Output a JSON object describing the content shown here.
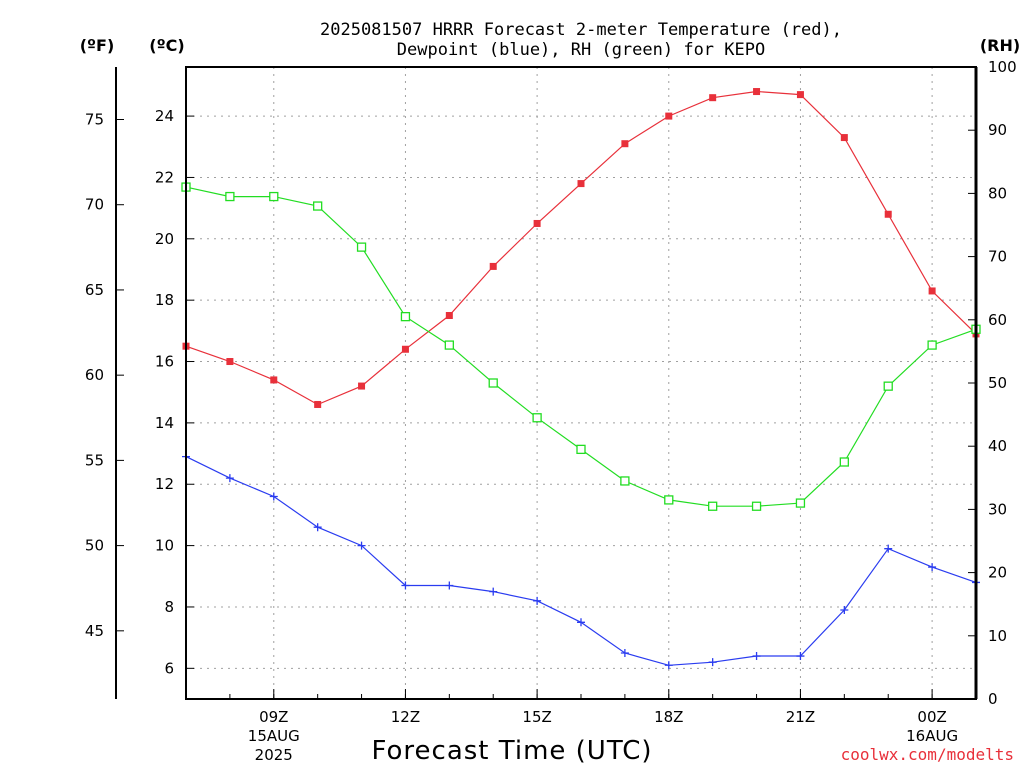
{
  "chart_data": {
    "type": "line",
    "title_lines": [
      "2025081507 HRRR Forecast 2-meter Temperature (red),",
      "Dewpoint (blue), RH (green) for KEPO"
    ],
    "xlabel": "Forecast Time (UTC)",
    "x_ticks": [
      {
        "hour": 2,
        "label": "09Z",
        "date_lines": [
          "15AUG",
          "2025"
        ]
      },
      {
        "hour": 5,
        "label": "12Z",
        "date_lines": []
      },
      {
        "hour": 8,
        "label": "15Z",
        "date_lines": []
      },
      {
        "hour": 11,
        "label": "18Z",
        "date_lines": []
      },
      {
        "hour": 14,
        "label": "21Z",
        "date_lines": []
      },
      {
        "hour": 17,
        "label": "00Z",
        "date_lines": [
          "16AUG"
        ]
      }
    ],
    "x_range": [
      0,
      18
    ],
    "left_axis_c": {
      "unit_label": "(ºC)",
      "range": [
        5,
        25.6
      ],
      "ticks": [
        6,
        8,
        10,
        12,
        14,
        16,
        18,
        20,
        22,
        24
      ]
    },
    "left_axis_f": {
      "unit_label": "(ºF)",
      "ticks": [
        45,
        50,
        55,
        60,
        65,
        70,
        75
      ]
    },
    "right_axis_rh": {
      "unit_label": "(RH)",
      "range": [
        0,
        100
      ],
      "ticks": [
        0,
        10,
        20,
        30,
        40,
        50,
        60,
        70,
        80,
        90,
        100
      ]
    },
    "grid": true,
    "series": [
      {
        "name": "Temperature",
        "axis": "celsius",
        "color": "#e8303a",
        "marker": "filled-square",
        "values": [
          16.5,
          16.0,
          15.4,
          14.6,
          15.2,
          16.4,
          17.5,
          19.1,
          20.5,
          21.8,
          23.1,
          24.0,
          24.6,
          24.8,
          24.7,
          23.3,
          20.8,
          18.3,
          16.9
        ]
      },
      {
        "name": "Dewpoint",
        "axis": "celsius",
        "color": "#2a3cf0",
        "marker": "plus",
        "values": [
          12.9,
          12.2,
          11.6,
          10.6,
          10.0,
          8.7,
          8.7,
          8.5,
          8.2,
          7.5,
          6.5,
          6.1,
          6.2,
          6.4,
          6.4,
          7.9,
          9.9,
          9.3,
          8.8
        ]
      },
      {
        "name": "RH",
        "axis": "rh",
        "color": "#22dd22",
        "marker": "open-square",
        "values": [
          81,
          79.5,
          79.5,
          78,
          71.5,
          60.5,
          56,
          50,
          44.5,
          39.5,
          34.5,
          31.5,
          30.5,
          30.5,
          31,
          37.5,
          49.5,
          56,
          58.5
        ]
      }
    ]
  },
  "credit": "coolwx.com/modelts",
  "colors": {
    "grid": "#a0a0a0",
    "frame": "#000000"
  }
}
